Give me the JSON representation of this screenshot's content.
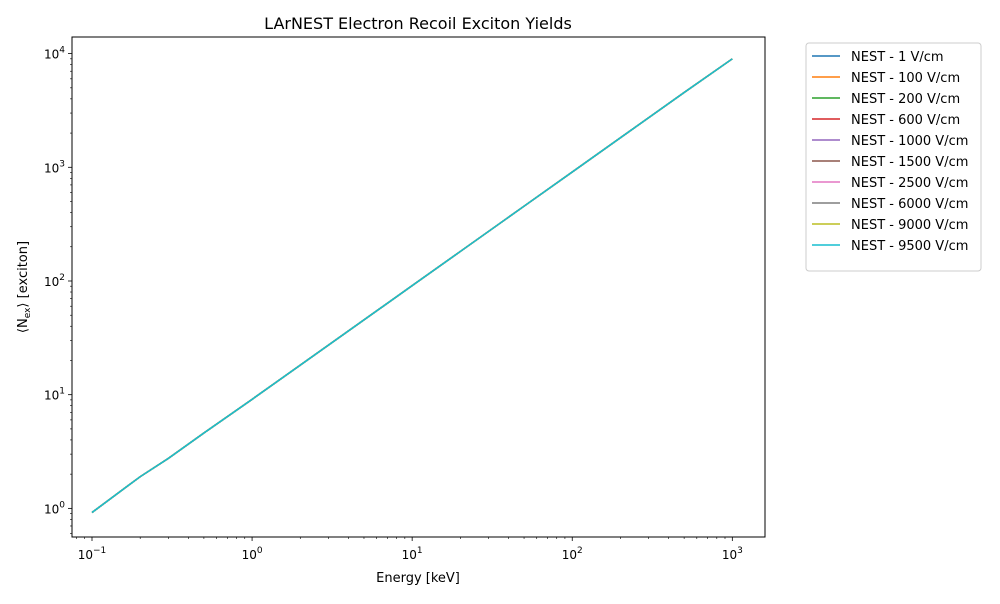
{
  "chart_data": {
    "type": "line",
    "title": "LArNEST Electron Recoil Exciton Yields",
    "xlabel": "Energy [keV]",
    "ylabel": "⟨N",
    "ylabel_sub": "ex",
    "ylabel_suffix": "⟩ [exciton]",
    "xscale": "log",
    "yscale": "log",
    "xlim": [
      0.075,
      1600
    ],
    "ylim": [
      0.56,
      14000
    ],
    "grid": false,
    "legend_position": "outside-top-right",
    "x_ticks": [
      {
        "value": 0.1,
        "base": "10",
        "exp": "−1"
      },
      {
        "value": 1,
        "base": "10",
        "exp": "0"
      },
      {
        "value": 10,
        "base": "10",
        "exp": "1"
      },
      {
        "value": 100,
        "base": "10",
        "exp": "2"
      },
      {
        "value": 1000,
        "base": "10",
        "exp": "3"
      }
    ],
    "y_ticks": [
      {
        "value": 1,
        "base": "10",
        "exp": "0"
      },
      {
        "value": 10,
        "base": "10",
        "exp": "1"
      },
      {
        "value": 100,
        "base": "10",
        "exp": "2"
      },
      {
        "value": 1000,
        "base": "10",
        "exp": "3"
      },
      {
        "value": 10000,
        "base": "10",
        "exp": "4"
      }
    ],
    "x": [
      0.1,
      0.2,
      0.3,
      0.5,
      1,
      2,
      5,
      10,
      20,
      50,
      100,
      200,
      500,
      1000
    ],
    "series": [
      {
        "name": "NEST - 1 V/cm",
        "color": "#1f77b4",
        "values": [
          0.92,
          1.9,
          2.75,
          4.6,
          9.1,
          18.2,
          45.5,
          91,
          182,
          455,
          910,
          1820,
          4550,
          9000
        ]
      },
      {
        "name": "NEST - 100 V/cm",
        "color": "#ff7f0e",
        "values": [
          0.92,
          1.9,
          2.75,
          4.6,
          9.1,
          18.2,
          45.5,
          91,
          182,
          455,
          910,
          1820,
          4550,
          9000
        ]
      },
      {
        "name": "NEST - 200 V/cm",
        "color": "#2ca02c",
        "values": [
          0.92,
          1.9,
          2.75,
          4.6,
          9.1,
          18.2,
          45.5,
          91,
          182,
          455,
          910,
          1820,
          4550,
          9000
        ]
      },
      {
        "name": "NEST - 600 V/cm",
        "color": "#d62728",
        "values": [
          0.92,
          1.9,
          2.75,
          4.6,
          9.1,
          18.2,
          45.5,
          91,
          182,
          455,
          910,
          1820,
          4550,
          9000
        ]
      },
      {
        "name": "NEST - 1000 V/cm",
        "color": "#9467bd",
        "values": [
          0.92,
          1.9,
          2.75,
          4.6,
          9.1,
          18.2,
          45.5,
          91,
          182,
          455,
          910,
          1820,
          4550,
          9000
        ]
      },
      {
        "name": "NEST - 1500 V/cm",
        "color": "#8c564b",
        "values": [
          0.92,
          1.9,
          2.75,
          4.6,
          9.1,
          18.2,
          45.5,
          91,
          182,
          455,
          910,
          1820,
          4550,
          9000
        ]
      },
      {
        "name": "NEST - 2500 V/cm",
        "color": "#e377c2",
        "values": [
          0.92,
          1.9,
          2.75,
          4.6,
          9.1,
          18.2,
          45.5,
          91,
          182,
          455,
          910,
          1820,
          4550,
          9000
        ]
      },
      {
        "name": "NEST - 6000 V/cm",
        "color": "#7f7f7f",
        "values": [
          0.92,
          1.9,
          2.75,
          4.6,
          9.1,
          18.2,
          45.5,
          91,
          182,
          455,
          910,
          1820,
          4550,
          9000
        ]
      },
      {
        "name": "NEST - 9000 V/cm",
        "color": "#bcbd22",
        "values": [
          0.92,
          1.9,
          2.75,
          4.6,
          9.1,
          18.2,
          45.5,
          91,
          182,
          455,
          910,
          1820,
          4550,
          9000
        ]
      },
      {
        "name": "NEST - 9500 V/cm",
        "color": "#17becf",
        "values": [
          0.92,
          1.9,
          2.75,
          4.6,
          9.1,
          18.2,
          45.5,
          91,
          182,
          455,
          910,
          1820,
          4550,
          9000
        ]
      }
    ]
  }
}
